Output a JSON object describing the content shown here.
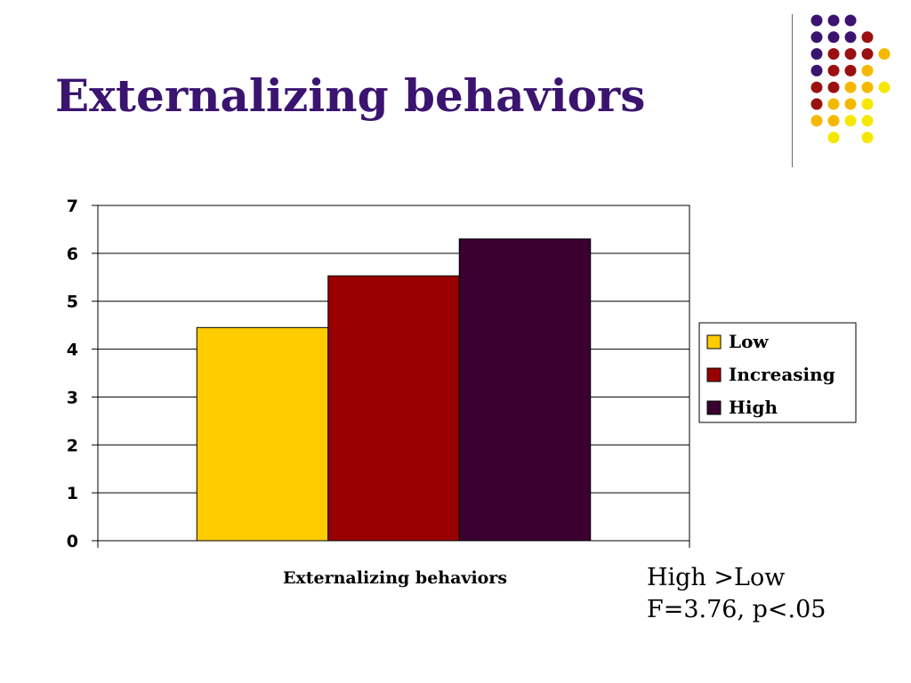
{
  "slide": {
    "title": "Externalizing behaviors"
  },
  "decoration": {
    "dot_colors": {
      "purple": "#3b1470",
      "red": "#9b1010",
      "orange": "#f5b800",
      "yellow": "#f5e800"
    },
    "dot_grid": [
      [
        "P",
        "P",
        "P",
        null,
        null
      ],
      [
        "P",
        "P",
        "P",
        "R",
        null
      ],
      [
        "P",
        "R",
        "R",
        "R",
        "O"
      ],
      [
        "P",
        "R",
        "R",
        "O",
        null
      ],
      [
        "R",
        "R",
        "O",
        "O",
        "Y"
      ],
      [
        "R",
        "O",
        "O",
        "Y",
        null
      ],
      [
        "O",
        "O",
        "Y",
        "Y",
        null
      ],
      [
        null,
        "Y",
        null,
        "Y",
        null
      ]
    ]
  },
  "chart_data": {
    "type": "bar",
    "title": "",
    "xlabel": "Externalizing behaviors",
    "ylabel": "",
    "categories": [
      "Externalizing behaviors"
    ],
    "series": [
      {
        "name": "Low",
        "values": [
          4.45
        ],
        "color": "#ffcc00"
      },
      {
        "name": "Increasing",
        "values": [
          5.53
        ],
        "color": "#990000"
      },
      {
        "name": "High",
        "values": [
          6.3
        ],
        "color": "#3a0030"
      }
    ],
    "ylim": [
      0,
      7
    ],
    "yticks": [
      "0",
      "1",
      "2",
      "3",
      "4",
      "5",
      "6",
      "7"
    ],
    "grid": true,
    "legend_position": "right"
  },
  "note": {
    "line1": "High >Low",
    "line2": "F=3.76, p<.05"
  }
}
